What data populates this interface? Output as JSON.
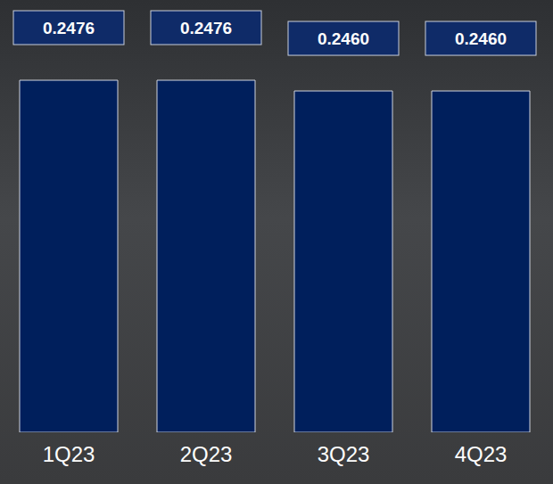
{
  "chart_data": {
    "type": "bar",
    "categories": [
      "1Q23",
      "2Q23",
      "3Q23",
      "4Q23"
    ],
    "values": [
      0.2476,
      0.2476,
      0.246,
      0.246
    ],
    "value_labels": [
      "0.2476",
      "0.2476",
      "0.2460",
      "0.2460"
    ],
    "color": "#001f5c",
    "ylim": [
      0.195,
      0.25
    ],
    "yticks": [
      0.195,
      0.25
    ],
    "tick_labels": "x",
    "grid": false,
    "data_labels": true
  }
}
